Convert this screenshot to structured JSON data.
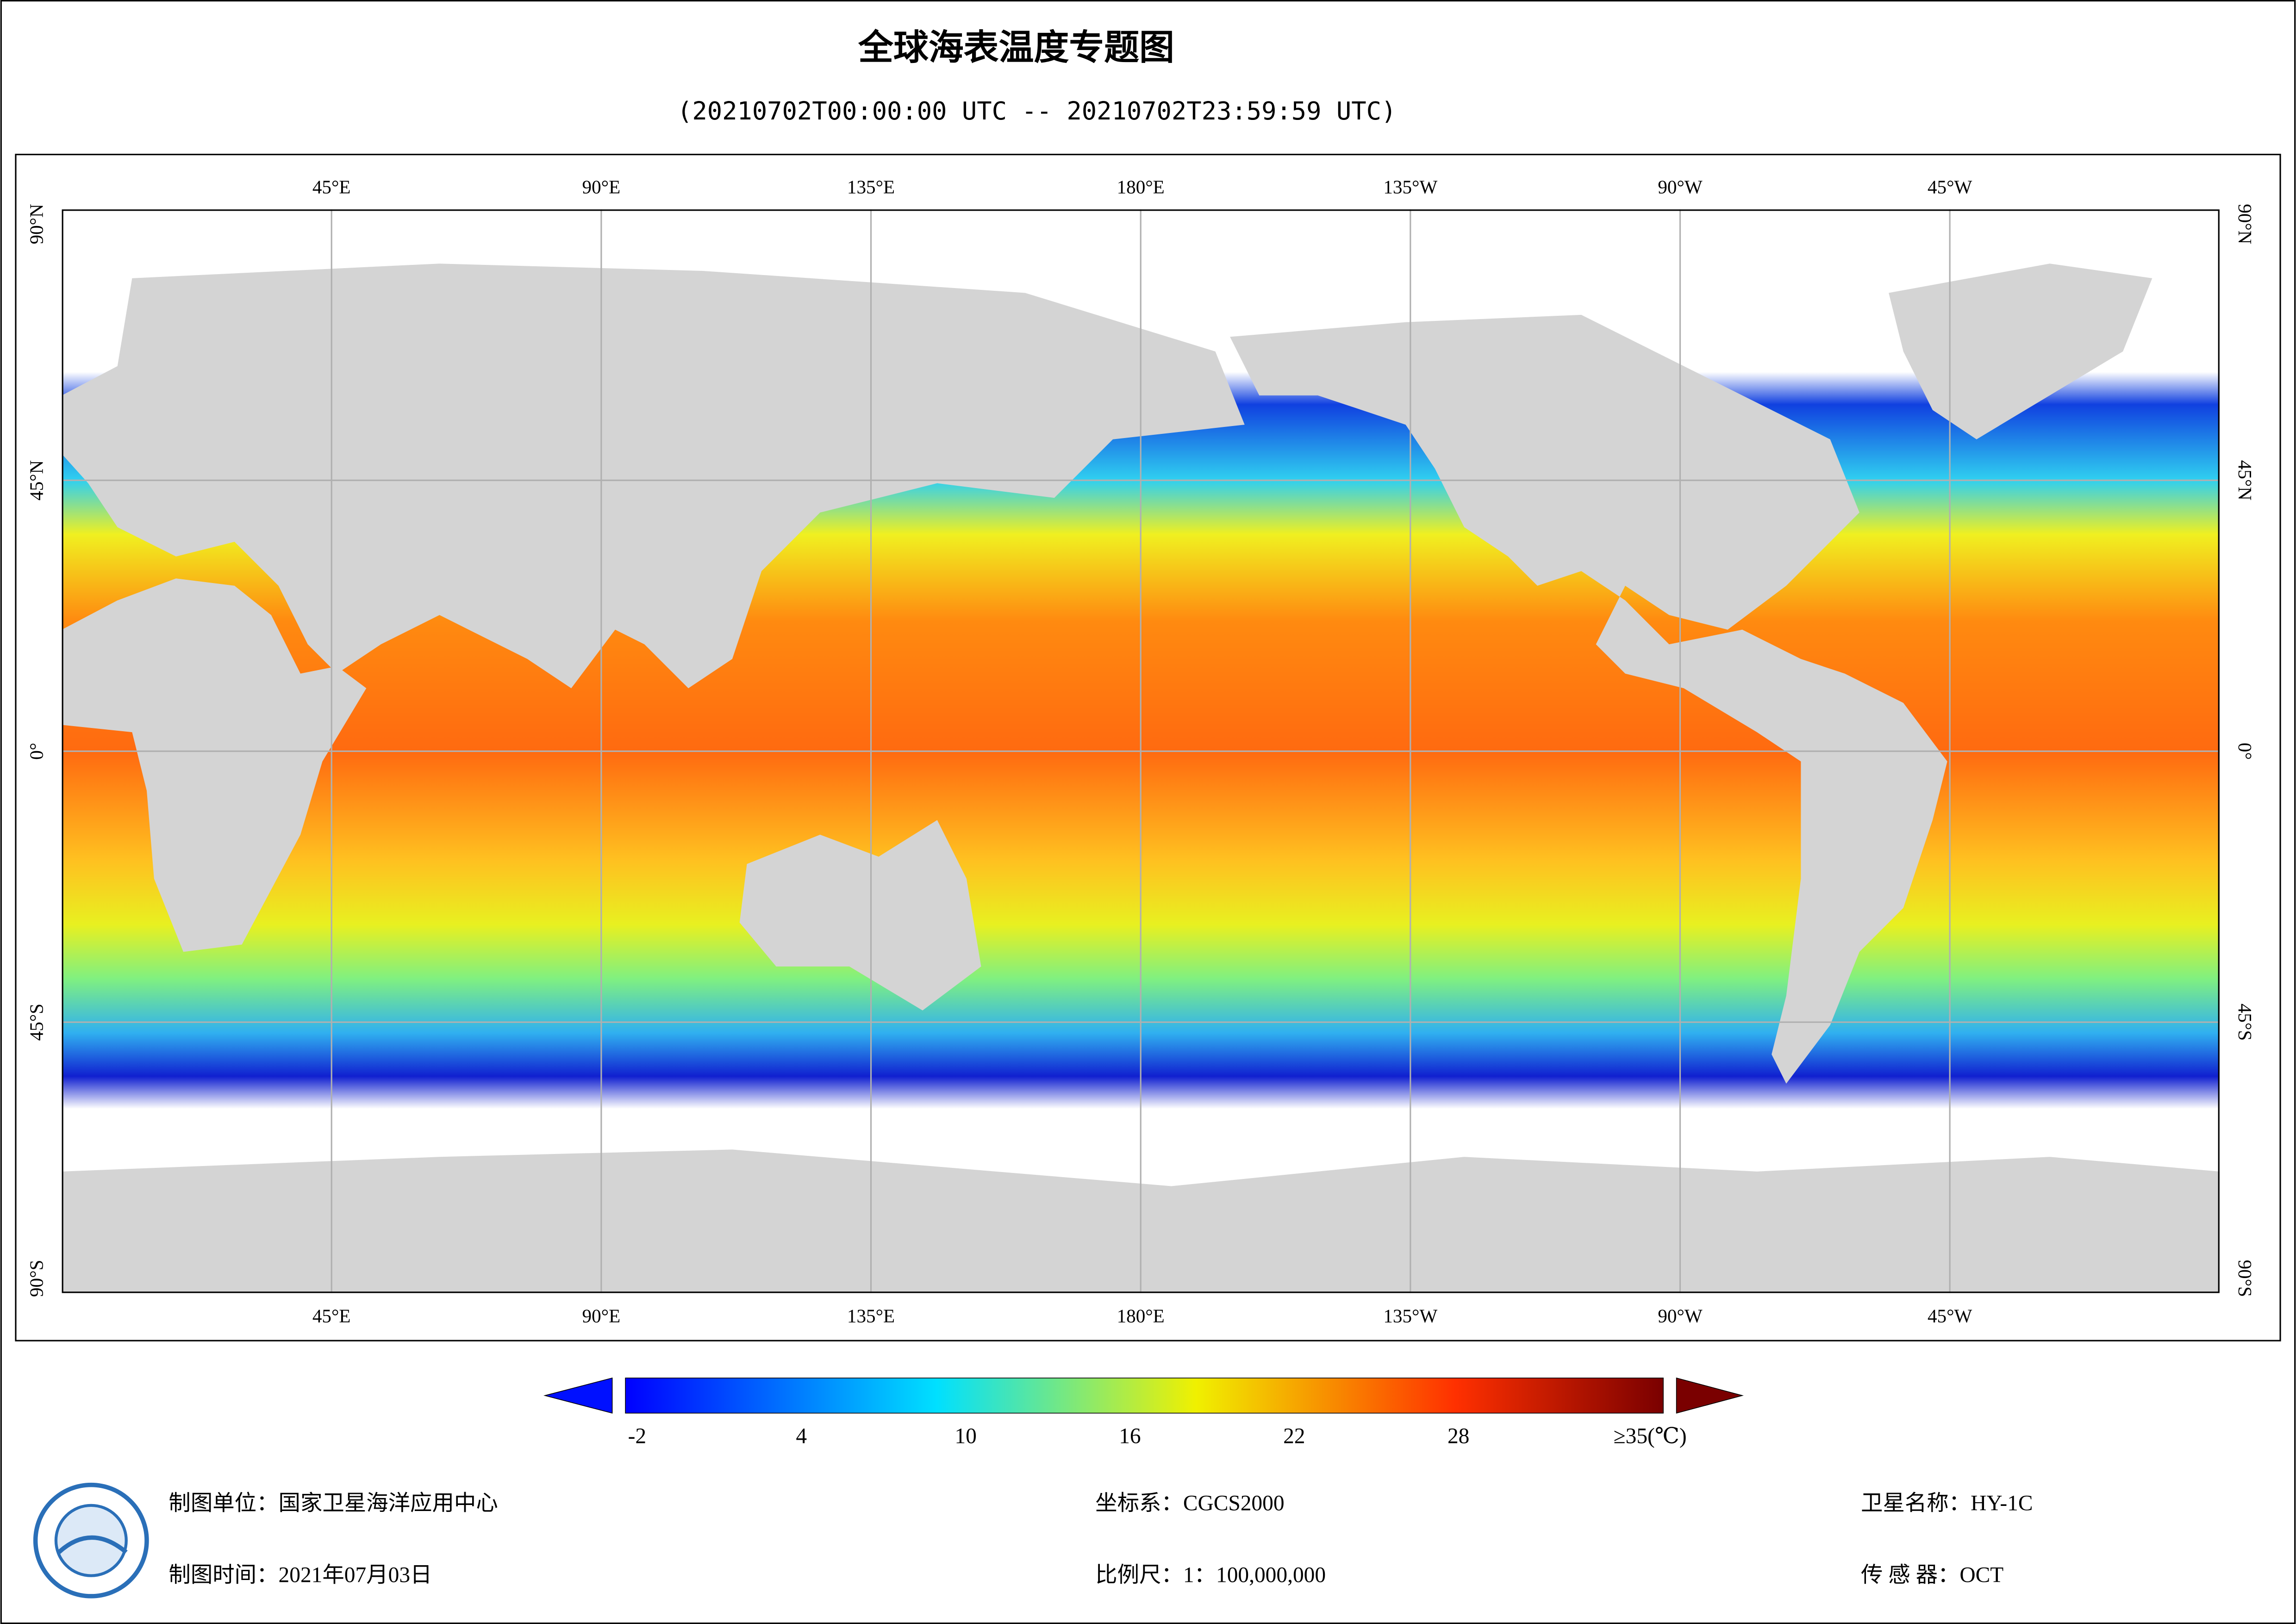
{
  "header": {
    "title": "全球海表温度专题图",
    "subtitle": "(20210702T00:00:00 UTC -- 20210702T23:59:59 UTC)"
  },
  "map": {
    "lon_ticks": [
      {
        "value": 45,
        "label": "45°E"
      },
      {
        "value": 90,
        "label": "90°E"
      },
      {
        "value": 135,
        "label": "135°E"
      },
      {
        "value": 180,
        "label": "180°E"
      },
      {
        "value": -135,
        "label": "135°W"
      },
      {
        "value": -90,
        "label": "90°W"
      },
      {
        "value": -45,
        "label": "45°W"
      }
    ],
    "lat_ticks": [
      {
        "value": 90,
        "label": "90°N"
      },
      {
        "value": 45,
        "label": "45°N"
      },
      {
        "value": 0,
        "label": "0°"
      },
      {
        "value": -45,
        "label": "45°S"
      },
      {
        "value": -90,
        "label": "90°S"
      }
    ]
  },
  "colorbar": {
    "ticks": [
      -2,
      4,
      10,
      16,
      22,
      28,
      {
        "value": 35,
        "label": "≥35(℃)"
      }
    ]
  },
  "footer": {
    "unit": "制图单位：国家卫星海洋应用中心",
    "date": "制图时间：2021年07月03日",
    "crs": "坐标系：CGCS2000",
    "scale": "比例尺：1：100,000,000",
    "satellite": "卫星名称：HY-1C",
    "sensor": "传 感 器：OCT"
  }
}
